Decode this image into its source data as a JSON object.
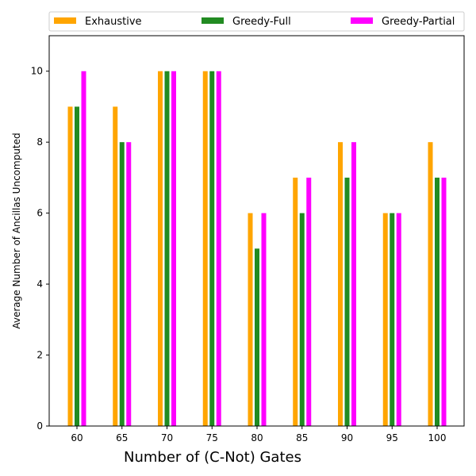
{
  "chart_data": {
    "type": "bar",
    "title": "",
    "xlabel": "Number of (C-Not) Gates",
    "ylabel": "Average Number of Ancillas Uncomputed",
    "categories": [
      "60",
      "65",
      "70",
      "75",
      "80",
      "85",
      "90",
      "95",
      "100"
    ],
    "ylim": [
      0,
      11
    ],
    "yticks": [
      "0",
      "2",
      "4",
      "6",
      "8",
      "10"
    ],
    "grid": false,
    "legend_position": "top",
    "series": [
      {
        "name": "Exhaustive",
        "color": "#ffa500",
        "values": [
          9,
          9,
          10,
          10,
          6,
          7,
          8,
          6,
          8
        ]
      },
      {
        "name": "Greedy-Full",
        "color": "#228b22",
        "values": [
          9,
          8,
          10,
          10,
          5,
          6,
          7,
          6,
          7
        ]
      },
      {
        "name": "Greedy-Partial",
        "color": "#ff00ff",
        "values": [
          10,
          8,
          10,
          10,
          6,
          7,
          8,
          6,
          7
        ]
      }
    ]
  }
}
